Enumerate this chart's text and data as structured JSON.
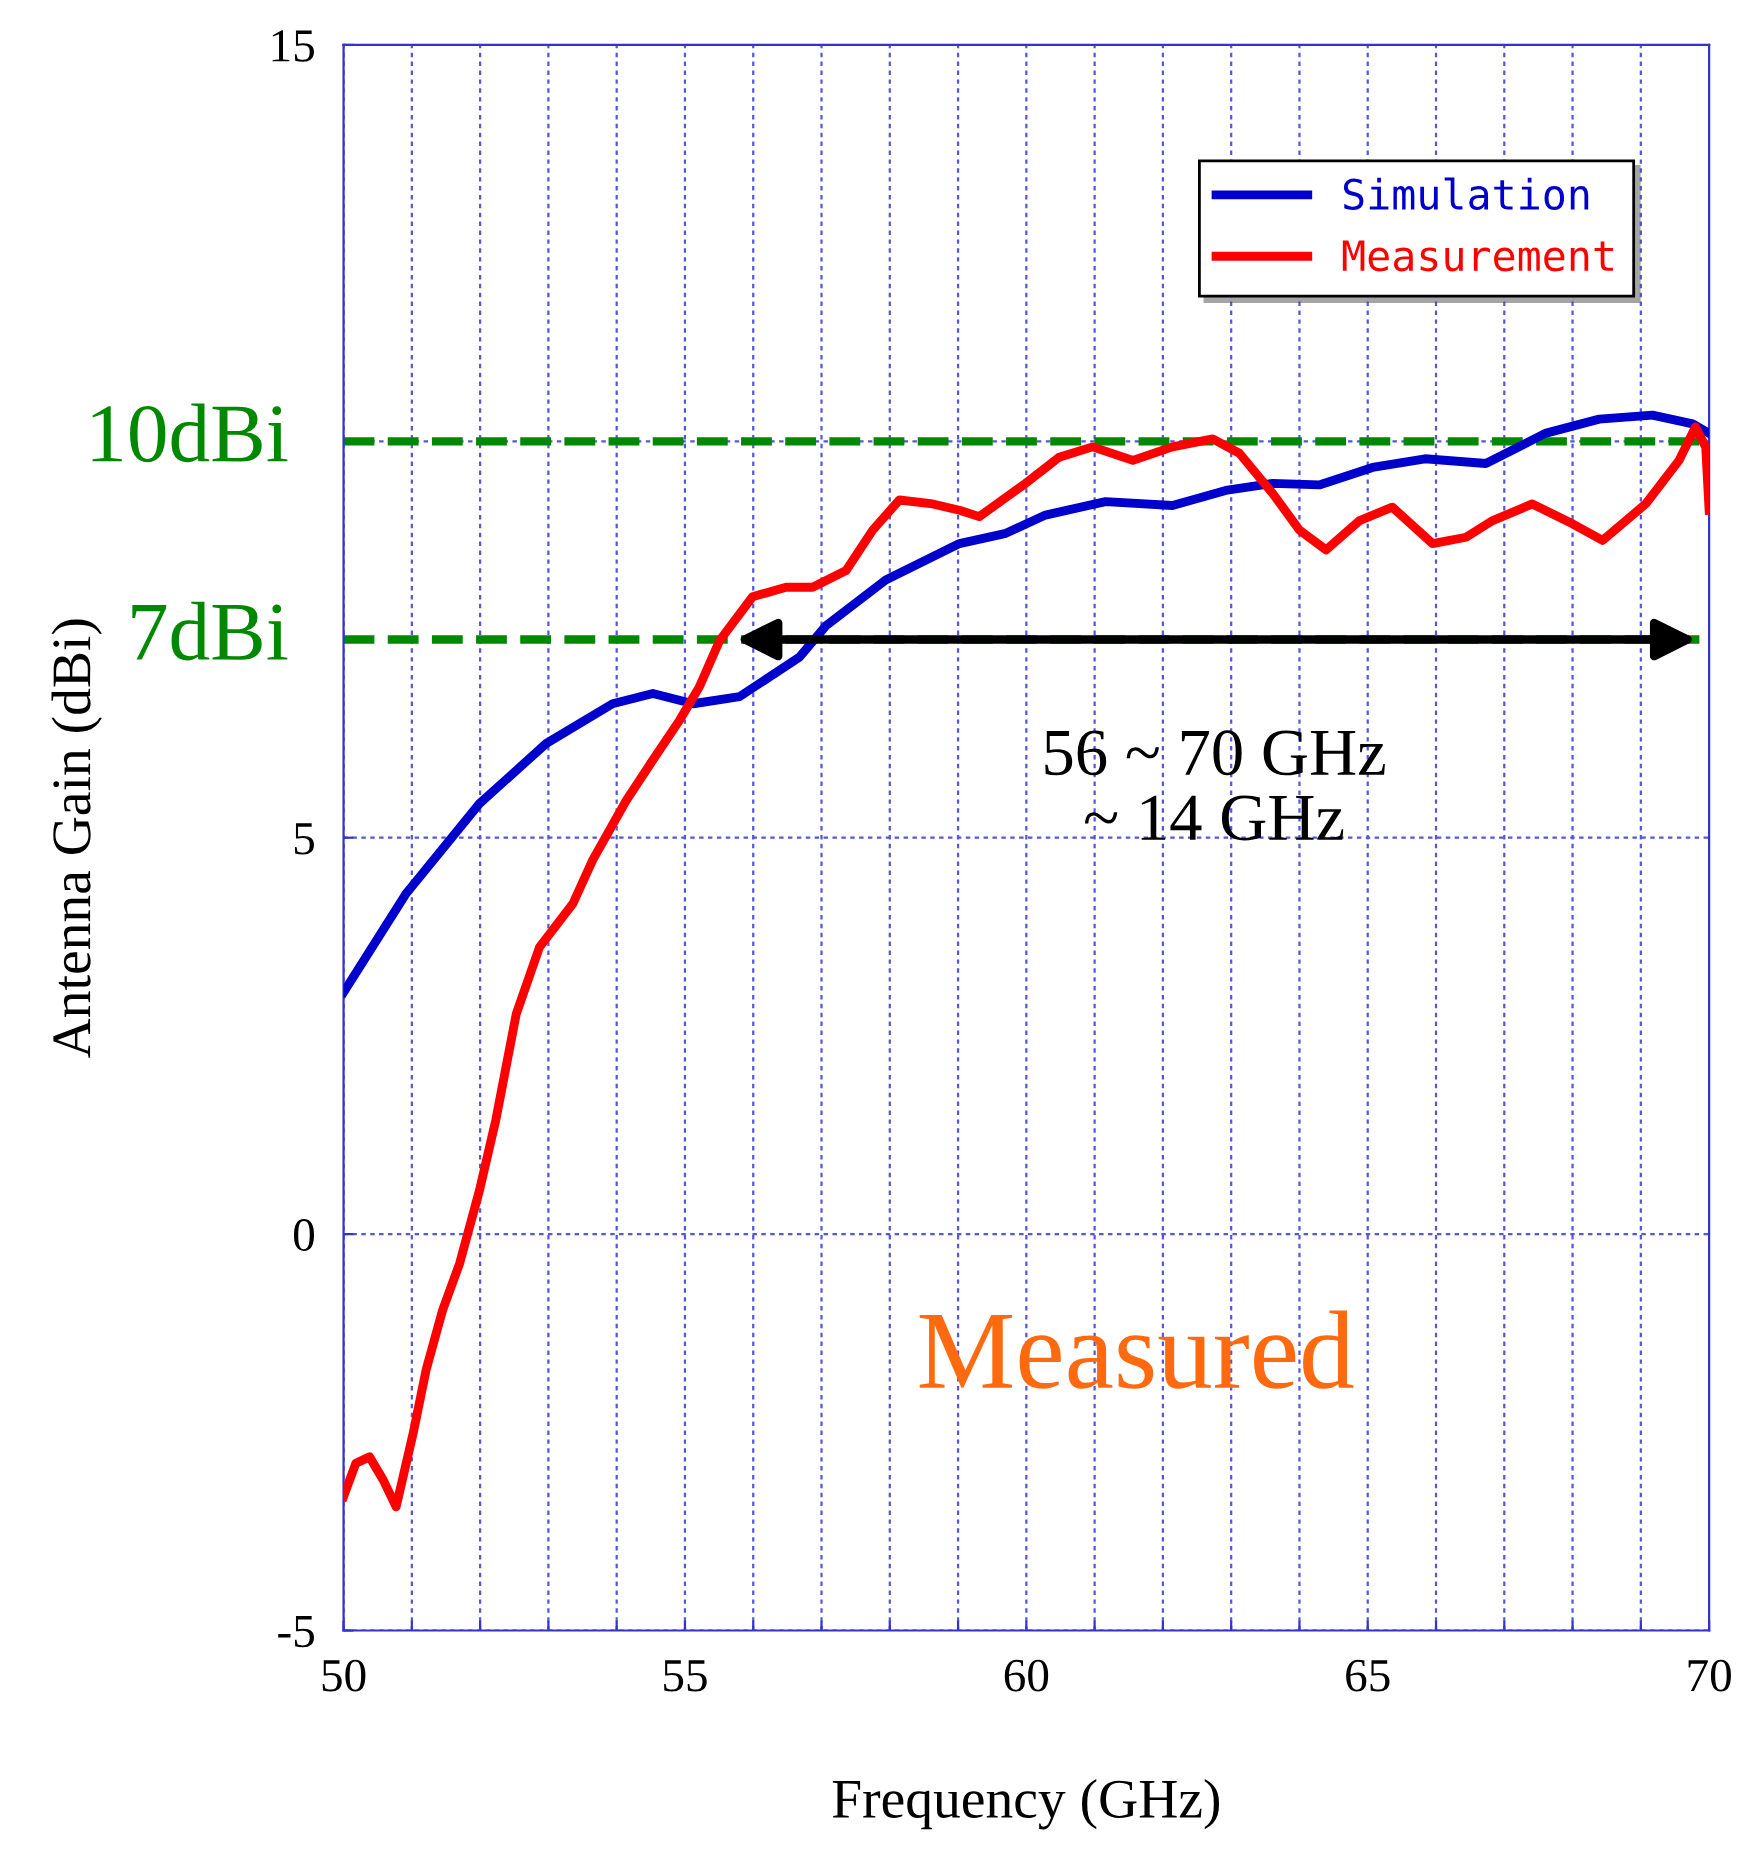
{
  "chart_data": {
    "type": "line",
    "xlabel": "Frequency (GHz)",
    "ylabel": "Antenna Gain (dBi)",
    "xlim": [
      50,
      70
    ],
    "ylim": [
      -5,
      15
    ],
    "xticks": [
      50,
      {
        "value": 51,
        "label": null
      },
      {
        "value": 52,
        "label": null
      },
      {
        "value": 53,
        "label": null
      },
      {
        "value": 54,
        "label": null
      },
      55,
      {
        "value": 56,
        "label": null
      },
      {
        "value": 57,
        "label": null
      },
      {
        "value": 58,
        "label": null
      },
      {
        "value": 59,
        "label": null
      },
      60,
      {
        "value": 61,
        "label": null
      },
      {
        "value": 62,
        "label": null
      },
      {
        "value": 63,
        "label": null
      },
      {
        "value": 64,
        "label": null
      },
      65,
      {
        "value": 66,
        "label": null
      },
      {
        "value": 67,
        "label": null
      },
      {
        "value": 68,
        "label": null
      },
      {
        "value": 69,
        "label": null
      },
      70
    ],
    "yticks": [
      -5,
      0,
      5,
      {
        "value": 10,
        "label": null
      },
      15
    ],
    "grid": true,
    "legend": "top right",
    "line_style": "solid",
    "marker": "none",
    "series": [
      {
        "name": "Simulation",
        "color": "#0000cc",
        "x": [
          50,
          50.92,
          51.99,
          52.97,
          53.94,
          54.53,
          55.12,
          55.8,
          56.68,
          57.06,
          57.94,
          59.02,
          59.7,
          60.28,
          61.16,
          62.14,
          62.92,
          63.61,
          64.29,
          65.07,
          65.84,
          66.73,
          67.6,
          68.39,
          69.17,
          69.76,
          70
        ],
        "values": [
          3.05,
          4.3,
          5.43,
          6.19,
          6.69,
          6.82,
          6.69,
          6.78,
          7.28,
          7.67,
          8.25,
          8.71,
          8.84,
          9.07,
          9.24,
          9.19,
          9.38,
          9.47,
          9.45,
          9.67,
          9.78,
          9.72,
          10.1,
          10.28,
          10.33,
          10.22,
          10.1
        ]
      },
      {
        "name": "Measurement",
        "color": "#ff0000",
        "x": [
          50,
          50.18,
          50.38,
          50.58,
          50.77,
          51.02,
          51.21,
          51.45,
          51.7,
          51.99,
          52.23,
          52.53,
          52.87,
          53.36,
          53.65,
          54.14,
          54.53,
          54.92,
          55.21,
          55.51,
          55.99,
          56.48,
          56.87,
          57.36,
          57.75,
          58.14,
          58.63,
          59.02,
          59.31,
          59.99,
          60.48,
          60.97,
          61.56,
          62.14,
          62.73,
          63.12,
          63.61,
          64.0,
          64.39,
          64.88,
          65.36,
          65.95,
          66.44,
          66.83,
          67.41,
          68.0,
          68.44,
          69.07,
          69.56,
          69.8,
          69.95,
          70
        ],
        "values": [
          -3.31,
          -2.89,
          -2.81,
          -3.1,
          -3.44,
          -2.51,
          -1.71,
          -0.96,
          -0.37,
          0.55,
          1.44,
          2.78,
          3.62,
          4.17,
          4.72,
          5.47,
          5.98,
          6.48,
          6.9,
          7.49,
          8.04,
          8.16,
          8.16,
          8.37,
          8.88,
          9.26,
          9.21,
          9.13,
          9.05,
          9.47,
          9.8,
          9.93,
          9.76,
          9.93,
          10.03,
          9.85,
          9.34,
          8.88,
          8.63,
          9.0,
          9.17,
          8.71,
          8.79,
          9.0,
          9.21,
          8.96,
          8.75,
          9.21,
          9.76,
          10.18,
          9.93,
          9.13
        ]
      }
    ],
    "ref_lines": [
      {
        "axis": "y",
        "value": 10,
        "label": "10dBi",
        "color": "#008800",
        "line_style": "dashed"
      },
      {
        "axis": "y",
        "value": 7.5,
        "label": "7dBi",
        "color": "#008800",
        "line_style": "dashed"
      }
    ],
    "annotations": [
      {
        "text": "56 ~ 70 GHz\n~ 14 GHz",
        "x": 62.75,
        "y": 7.5
      },
      "Measured"
    ]
  }
}
